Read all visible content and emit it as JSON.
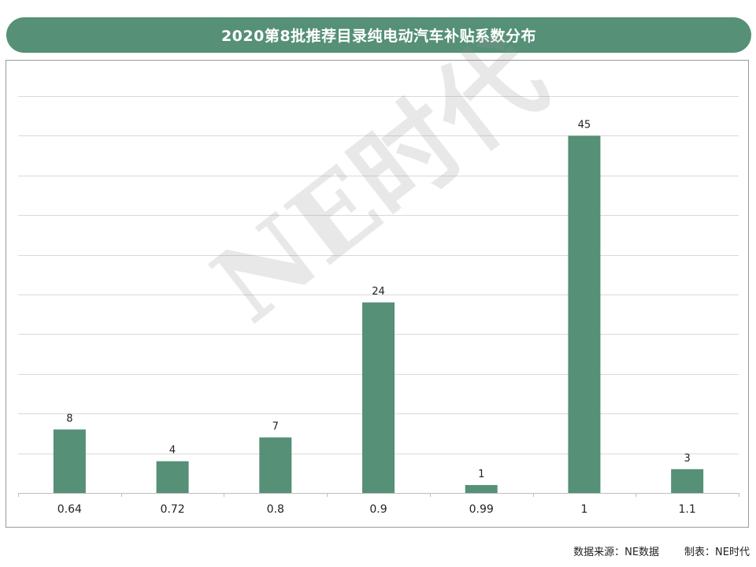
{
  "colors": {
    "accent": "#559077",
    "grid": "#d9d9d9",
    "axis": "#bfbfbf"
  },
  "chart_data": {
    "type": "bar",
    "title": "2020第8批推荐目录纯电动汽车补贴系数分布",
    "categories": [
      "0.64",
      "0.72",
      "0.8",
      "0.9",
      "0.99",
      "1",
      "1.1"
    ],
    "values": [
      8,
      4,
      7,
      24,
      1,
      45,
      3
    ],
    "ylim": [
      0,
      50
    ],
    "grid": true,
    "legend": "none",
    "data_labels": true
  },
  "watermark": "NE时代",
  "footer": {
    "source": "数据来源：NE数据",
    "maker": "制表：NE时代"
  }
}
